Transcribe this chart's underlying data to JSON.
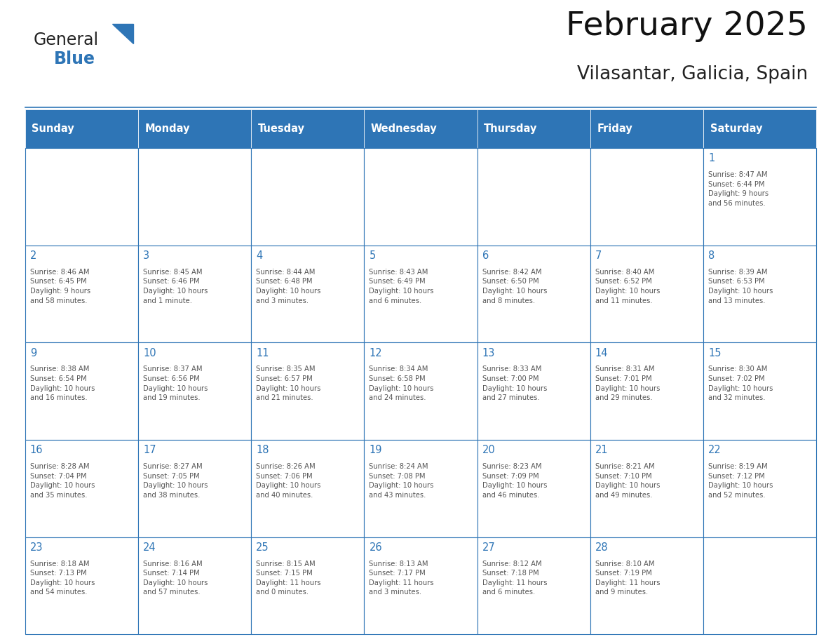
{
  "title": "February 2025",
  "subtitle": "Vilasantar, Galicia, Spain",
  "header_bg_color": "#2E75B6",
  "header_text_color": "#FFFFFF",
  "cell_bg_color": "#FFFFFF",
  "cell_border_color": "#2E75B6",
  "day_number_color": "#2E75B6",
  "cell_text_color": "#555555",
  "background_color": "#FFFFFF",
  "days_of_week": [
    "Sunday",
    "Monday",
    "Tuesday",
    "Wednesday",
    "Thursday",
    "Friday",
    "Saturday"
  ],
  "weeks": [
    [
      {
        "day": "",
        "info": ""
      },
      {
        "day": "",
        "info": ""
      },
      {
        "day": "",
        "info": ""
      },
      {
        "day": "",
        "info": ""
      },
      {
        "day": "",
        "info": ""
      },
      {
        "day": "",
        "info": ""
      },
      {
        "day": "1",
        "info": "Sunrise: 8:47 AM\nSunset: 6:44 PM\nDaylight: 9 hours\nand 56 minutes."
      }
    ],
    [
      {
        "day": "2",
        "info": "Sunrise: 8:46 AM\nSunset: 6:45 PM\nDaylight: 9 hours\nand 58 minutes."
      },
      {
        "day": "3",
        "info": "Sunrise: 8:45 AM\nSunset: 6:46 PM\nDaylight: 10 hours\nand 1 minute."
      },
      {
        "day": "4",
        "info": "Sunrise: 8:44 AM\nSunset: 6:48 PM\nDaylight: 10 hours\nand 3 minutes."
      },
      {
        "day": "5",
        "info": "Sunrise: 8:43 AM\nSunset: 6:49 PM\nDaylight: 10 hours\nand 6 minutes."
      },
      {
        "day": "6",
        "info": "Sunrise: 8:42 AM\nSunset: 6:50 PM\nDaylight: 10 hours\nand 8 minutes."
      },
      {
        "day": "7",
        "info": "Sunrise: 8:40 AM\nSunset: 6:52 PM\nDaylight: 10 hours\nand 11 minutes."
      },
      {
        "day": "8",
        "info": "Sunrise: 8:39 AM\nSunset: 6:53 PM\nDaylight: 10 hours\nand 13 minutes."
      }
    ],
    [
      {
        "day": "9",
        "info": "Sunrise: 8:38 AM\nSunset: 6:54 PM\nDaylight: 10 hours\nand 16 minutes."
      },
      {
        "day": "10",
        "info": "Sunrise: 8:37 AM\nSunset: 6:56 PM\nDaylight: 10 hours\nand 19 minutes."
      },
      {
        "day": "11",
        "info": "Sunrise: 8:35 AM\nSunset: 6:57 PM\nDaylight: 10 hours\nand 21 minutes."
      },
      {
        "day": "12",
        "info": "Sunrise: 8:34 AM\nSunset: 6:58 PM\nDaylight: 10 hours\nand 24 minutes."
      },
      {
        "day": "13",
        "info": "Sunrise: 8:33 AM\nSunset: 7:00 PM\nDaylight: 10 hours\nand 27 minutes."
      },
      {
        "day": "14",
        "info": "Sunrise: 8:31 AM\nSunset: 7:01 PM\nDaylight: 10 hours\nand 29 minutes."
      },
      {
        "day": "15",
        "info": "Sunrise: 8:30 AM\nSunset: 7:02 PM\nDaylight: 10 hours\nand 32 minutes."
      }
    ],
    [
      {
        "day": "16",
        "info": "Sunrise: 8:28 AM\nSunset: 7:04 PM\nDaylight: 10 hours\nand 35 minutes."
      },
      {
        "day": "17",
        "info": "Sunrise: 8:27 AM\nSunset: 7:05 PM\nDaylight: 10 hours\nand 38 minutes."
      },
      {
        "day": "18",
        "info": "Sunrise: 8:26 AM\nSunset: 7:06 PM\nDaylight: 10 hours\nand 40 minutes."
      },
      {
        "day": "19",
        "info": "Sunrise: 8:24 AM\nSunset: 7:08 PM\nDaylight: 10 hours\nand 43 minutes."
      },
      {
        "day": "20",
        "info": "Sunrise: 8:23 AM\nSunset: 7:09 PM\nDaylight: 10 hours\nand 46 minutes."
      },
      {
        "day": "21",
        "info": "Sunrise: 8:21 AM\nSunset: 7:10 PM\nDaylight: 10 hours\nand 49 minutes."
      },
      {
        "day": "22",
        "info": "Sunrise: 8:19 AM\nSunset: 7:12 PM\nDaylight: 10 hours\nand 52 minutes."
      }
    ],
    [
      {
        "day": "23",
        "info": "Sunrise: 8:18 AM\nSunset: 7:13 PM\nDaylight: 10 hours\nand 54 minutes."
      },
      {
        "day": "24",
        "info": "Sunrise: 8:16 AM\nSunset: 7:14 PM\nDaylight: 10 hours\nand 57 minutes."
      },
      {
        "day": "25",
        "info": "Sunrise: 8:15 AM\nSunset: 7:15 PM\nDaylight: 11 hours\nand 0 minutes."
      },
      {
        "day": "26",
        "info": "Sunrise: 8:13 AM\nSunset: 7:17 PM\nDaylight: 11 hours\nand 3 minutes."
      },
      {
        "day": "27",
        "info": "Sunrise: 8:12 AM\nSunset: 7:18 PM\nDaylight: 11 hours\nand 6 minutes."
      },
      {
        "day": "28",
        "info": "Sunrise: 8:10 AM\nSunset: 7:19 PM\nDaylight: 11 hours\nand 9 minutes."
      },
      {
        "day": "",
        "info": ""
      }
    ]
  ],
  "logo_text_general": "General",
  "logo_text_blue": "Blue",
  "logo_triangle_color": "#2E75B6",
  "logo_general_color": "#222222",
  "logo_blue_color": "#2E75B6"
}
